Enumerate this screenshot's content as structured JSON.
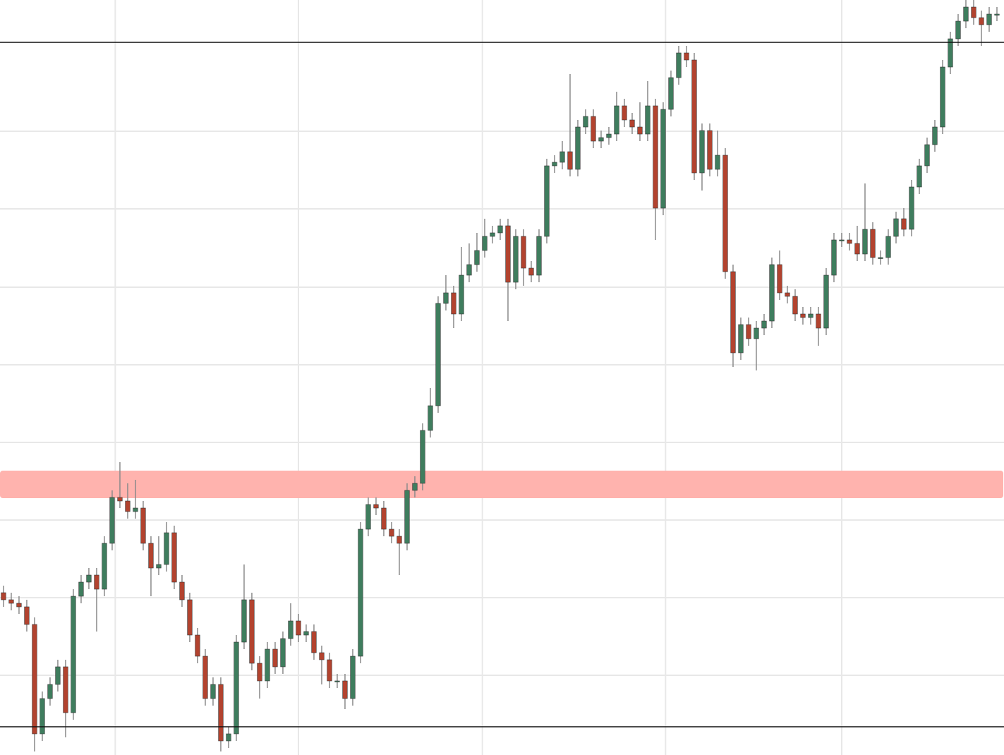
{
  "chart_data": {
    "type": "candlestick",
    "up_color": "#3f7d5e",
    "down_color": "#b2432f",
    "wick_color": "#8a8a8a",
    "level_color": "#111111",
    "zone_color": "#ffb3ae",
    "ylim": [
      0,
      1070
    ],
    "xlim": [
      -0.45,
      128.91
    ],
    "yticks": [
      113,
      223,
      333,
      443,
      553,
      663,
      774,
      884
    ],
    "xticks": [
      14.4,
      38,
      61.7,
      85.3,
      108
    ],
    "grid": true,
    "levels": [
      1010,
      40
    ],
    "zone": [
      364,
      403
    ],
    "open": [
      230,
      220,
      215,
      210,
      185,
      30,
      80,
      100,
      125,
      60,
      225,
      245,
      255,
      235,
      300,
      365,
      360,
      345,
      350,
      300,
      265,
      270,
      315,
      245,
      220,
      170,
      140,
      80,
      100,
      20,
      30,
      160,
      220,
      130,
      105,
      150,
      125,
      165,
      190,
      170,
      175,
      145,
      135,
      105,
      105,
      80,
      140,
      320,
      355,
      350,
      320,
      310,
      300,
      375,
      385,
      460,
      495,
      640,
      655,
      625,
      680,
      695,
      715,
      735,
      740,
      750,
      670,
      735,
      690,
      680,
      735,
      835,
      840,
      855,
      830,
      890,
      905,
      870,
      875,
      880,
      920,
      900,
      890,
      880,
      920,
      775,
      915,
      960,
      995,
      985,
      825,
      885,
      830,
      850,
      685,
      570,
      610,
      590,
      605,
      615,
      695,
      655,
      650,
      625,
      620,
      625,
      605,
      680,
      730,
      730,
      725,
      710,
      745,
      705,
      705,
      735,
      760,
      745,
      805,
      835,
      865,
      890,
      975,
      1015,
      1040,
      1060,
      1045,
      1035,
      1050
    ],
    "high": [
      240,
      230,
      225,
      220,
      195,
      90,
      110,
      135,
      135,
      235,
      255,
      265,
      265,
      310,
      375,
      415,
      385,
      390,
      360,
      310,
      310,
      330,
      325,
      255,
      230,
      180,
      150,
      110,
      110,
      40,
      170,
      270,
      230,
      140,
      160,
      160,
      175,
      215,
      200,
      185,
      185,
      155,
      145,
      115,
      115,
      150,
      330,
      365,
      365,
      360,
      330,
      320,
      385,
      395,
      470,
      520,
      650,
      680,
      665,
      720,
      725,
      740,
      760,
      750,
      760,
      760,
      745,
      745,
      700,
      745,
      845,
      850,
      870,
      965,
      900,
      915,
      915,
      885,
      890,
      940,
      930,
      910,
      925,
      955,
      930,
      925,
      970,
      1005,
      1005,
      995,
      895,
      895,
      885,
      860,
      695,
      620,
      620,
      615,
      625,
      705,
      715,
      665,
      660,
      635,
      635,
      635,
      690,
      740,
      740,
      740,
      750,
      810,
      755,
      715,
      745,
      770,
      775,
      815,
      845,
      875,
      900,
      985,
      1025,
      1050,
      1070,
      1070,
      1055,
      1060,
      1060
    ],
    "low": [
      210,
      205,
      200,
      175,
      5,
      20,
      70,
      90,
      25,
      50,
      215,
      235,
      175,
      225,
      290,
      350,
      335,
      335,
      290,
      225,
      255,
      260,
      235,
      210,
      160,
      130,
      70,
      70,
      5,
      10,
      20,
      150,
      120,
      80,
      95,
      115,
      115,
      155,
      160,
      160,
      135,
      100,
      95,
      95,
      65,
      70,
      130,
      310,
      340,
      310,
      300,
      255,
      290,
      365,
      375,
      450,
      485,
      630,
      605,
      615,
      670,
      685,
      705,
      725,
      730,
      615,
      660,
      665,
      670,
      670,
      725,
      825,
      830,
      820,
      820,
      880,
      860,
      860,
      865,
      870,
      890,
      880,
      870,
      870,
      730,
      765,
      905,
      950,
      975,
      815,
      800,
      820,
      820,
      675,
      550,
      560,
      580,
      545,
      595,
      605,
      645,
      640,
      615,
      610,
      610,
      580,
      595,
      670,
      720,
      715,
      700,
      700,
      695,
      695,
      695,
      725,
      735,
      735,
      795,
      825,
      855,
      880,
      965,
      1005,
      1030,
      1035,
      1005,
      1025,
      1040
    ],
    "close": [
      220,
      215,
      210,
      185,
      30,
      80,
      100,
      125,
      60,
      225,
      245,
      255,
      235,
      300,
      365,
      360,
      345,
      350,
      300,
      265,
      270,
      315,
      245,
      220,
      170,
      140,
      80,
      100,
      20,
      30,
      160,
      220,
      130,
      105,
      150,
      125,
      165,
      190,
      170,
      175,
      145,
      135,
      105,
      105,
      80,
      140,
      320,
      355,
      350,
      320,
      310,
      300,
      375,
      385,
      460,
      495,
      640,
      655,
      625,
      680,
      695,
      715,
      735,
      740,
      750,
      670,
      735,
      690,
      680,
      735,
      835,
      840,
      855,
      830,
      890,
      905,
      870,
      875,
      880,
      920,
      900,
      890,
      880,
      920,
      775,
      915,
      960,
      995,
      985,
      825,
      885,
      830,
      850,
      685,
      570,
      610,
      590,
      605,
      615,
      695,
      655,
      650,
      625,
      620,
      625,
      605,
      680,
      730,
      730,
      725,
      710,
      745,
      705,
      705,
      735,
      760,
      745,
      805,
      835,
      865,
      890,
      975,
      1015,
      1040,
      1060,
      1045,
      1035,
      1050,
      1050
    ]
  }
}
